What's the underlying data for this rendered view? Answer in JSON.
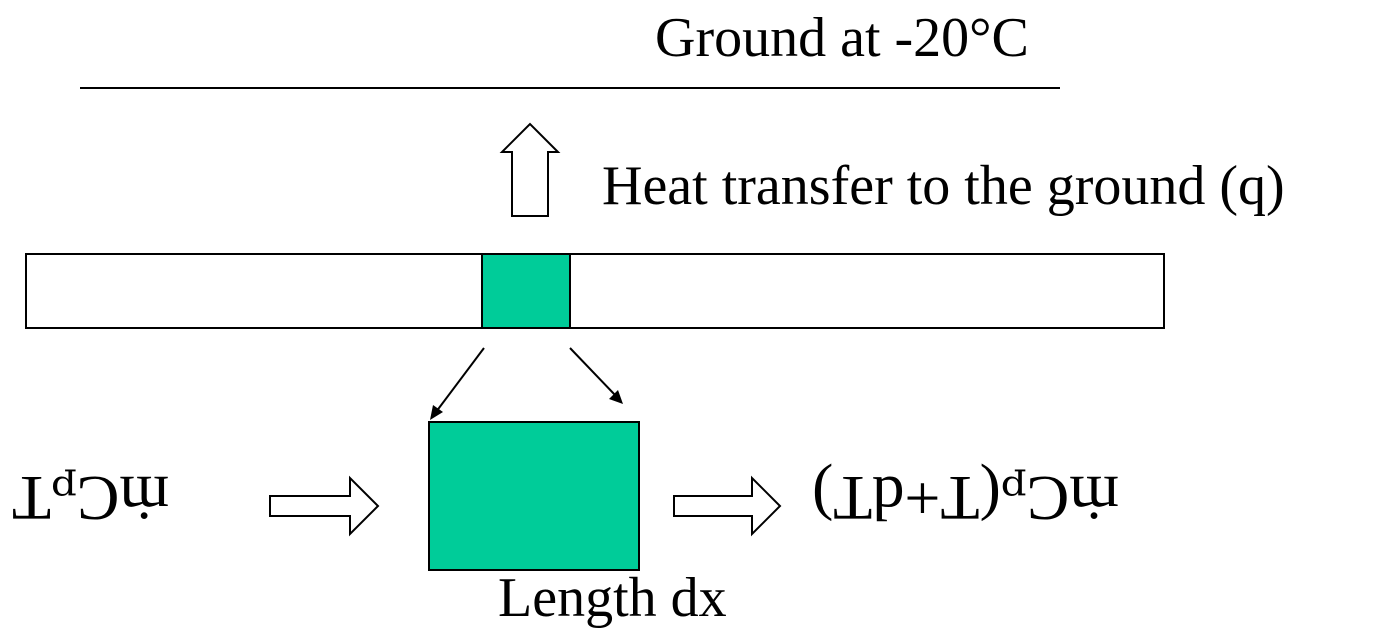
{
  "ground": {
    "label": "Ground at -20°C"
  },
  "heat_transfer": {
    "label": "Heat transfer to the ground (q)"
  },
  "element": {
    "length_label": "Length dx"
  },
  "energy_in": {
    "expression": "ṁCₚT"
  },
  "energy_out": {
    "expression": "ṁCₚ(T+dT)"
  },
  "colors": {
    "element_fill": "#00cc99",
    "stroke": "#000000",
    "background": "#ffffff"
  }
}
